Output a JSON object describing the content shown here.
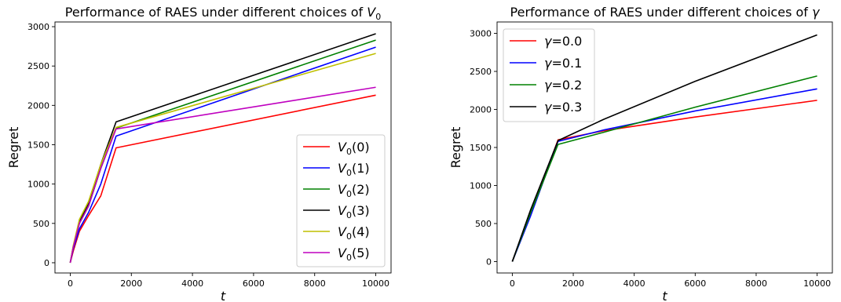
{
  "chart_data": [
    {
      "type": "line",
      "title": "Performance of RAES under different choices of V",
      "title_sub": "0",
      "xlabel": "t",
      "ylabel": "Regret",
      "xlim": [
        -500,
        10500
      ],
      "ylim": [
        -130,
        3060
      ],
      "xticks": [
        0,
        2000,
        4000,
        6000,
        8000,
        10000
      ],
      "yticks": [
        0,
        500,
        1000,
        1500,
        2000,
        2500,
        3000
      ],
      "grid": false,
      "legend_position": "lower-right",
      "series": [
        {
          "name": "V",
          "sub": "0",
          "arg": "(0)",
          "color": "#ff0000",
          "x": [
            0,
            100,
            300,
            600,
            1000,
            1500,
            10000
          ],
          "y": [
            0,
            150,
            400,
            600,
            850,
            1460,
            2130
          ]
        },
        {
          "name": "V",
          "sub": "0",
          "arg": "(1)",
          "color": "#0000ff",
          "x": [
            0,
            100,
            300,
            600,
            1000,
            1500,
            10000
          ],
          "y": [
            0,
            180,
            430,
            640,
            1000,
            1610,
            2740
          ]
        },
        {
          "name": "V",
          "sub": "0",
          "arg": "(2)",
          "color": "#008000",
          "x": [
            0,
            100,
            300,
            600,
            1000,
            1500,
            10000
          ],
          "y": [
            0,
            200,
            500,
            720,
            1200,
            1710,
            2830
          ]
        },
        {
          "name": "V",
          "sub": "0",
          "arg": "(3)",
          "color": "#000000",
          "x": [
            0,
            100,
            300,
            600,
            1000,
            1500,
            10000
          ],
          "y": [
            0,
            210,
            520,
            760,
            1250,
            1790,
            2910
          ]
        },
        {
          "name": "V",
          "sub": "0",
          "arg": "(4)",
          "color": "#bfbf00",
          "x": [
            0,
            100,
            300,
            600,
            1000,
            1500,
            10000
          ],
          "y": [
            0,
            220,
            550,
            780,
            1250,
            1720,
            2660
          ]
        },
        {
          "name": "V",
          "sub": "0",
          "arg": "(5)",
          "color": "#bf00bf",
          "x": [
            0,
            100,
            300,
            600,
            1000,
            1500,
            10000
          ],
          "y": [
            0,
            200,
            500,
            720,
            1200,
            1700,
            2230
          ]
        }
      ]
    },
    {
      "type": "line",
      "title": "Performance of RAES under different choices of γ",
      "title_sub": "",
      "xlabel": "t",
      "ylabel": "Regret",
      "xlim": [
        -500,
        10500
      ],
      "ylim": [
        -150,
        3150
      ],
      "xticks": [
        0,
        2000,
        4000,
        6000,
        8000,
        10000
      ],
      "yticks": [
        0,
        500,
        1000,
        1500,
        2000,
        2500,
        3000
      ],
      "grid": false,
      "legend_position": "upper-left",
      "series": [
        {
          "name": "γ=0.0",
          "color": "#ff0000",
          "x": [
            0,
            600,
            1500,
            3000,
            6000,
            10000
          ],
          "y": [
            0,
            620,
            1600,
            1720,
            1900,
            2120
          ]
        },
        {
          "name": "γ=0.1",
          "color": "#0000ff",
          "x": [
            0,
            600,
            1500,
            3000,
            6000,
            10000
          ],
          "y": [
            0,
            600,
            1580,
            1730,
            1980,
            2270
          ]
        },
        {
          "name": "γ=0.2",
          "color": "#008000",
          "x": [
            0,
            600,
            1500,
            3000,
            6000,
            10000
          ],
          "y": [
            0,
            640,
            1540,
            1700,
            2030,
            2440
          ]
        },
        {
          "name": "γ=0.3",
          "color": "#000000",
          "x": [
            0,
            600,
            1500,
            3000,
            6000,
            10000
          ],
          "y": [
            0,
            680,
            1590,
            1870,
            2370,
            2980
          ]
        }
      ]
    }
  ]
}
